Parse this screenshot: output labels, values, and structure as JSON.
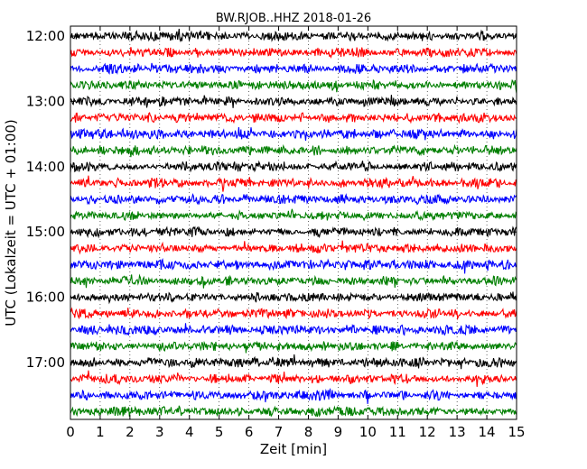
{
  "chart_data": {
    "type": "line",
    "title": "BW.RJOB..HHZ 2018-01-26",
    "xlabel": "Zeit  [min]",
    "ylabel": "UTC (Lokalzeit = UTC + 01:00)",
    "xlim": [
      0,
      15
    ],
    "x_ticks": [
      "0",
      "1",
      "2",
      "3",
      "4",
      "5",
      "6",
      "7",
      "8",
      "9",
      "10",
      "11",
      "12",
      "13",
      "14",
      "15"
    ],
    "y_ticks": [
      "12:00",
      "13:00",
      "14:00",
      "15:00",
      "16:00",
      "17:00"
    ],
    "trace_interval_min": 15,
    "start_time": "12:00",
    "trace_count": 24,
    "trace_colors": [
      "#000000",
      "#ff0000",
      "#0000ff",
      "#007f00"
    ],
    "grid": "vertical dotted"
  }
}
